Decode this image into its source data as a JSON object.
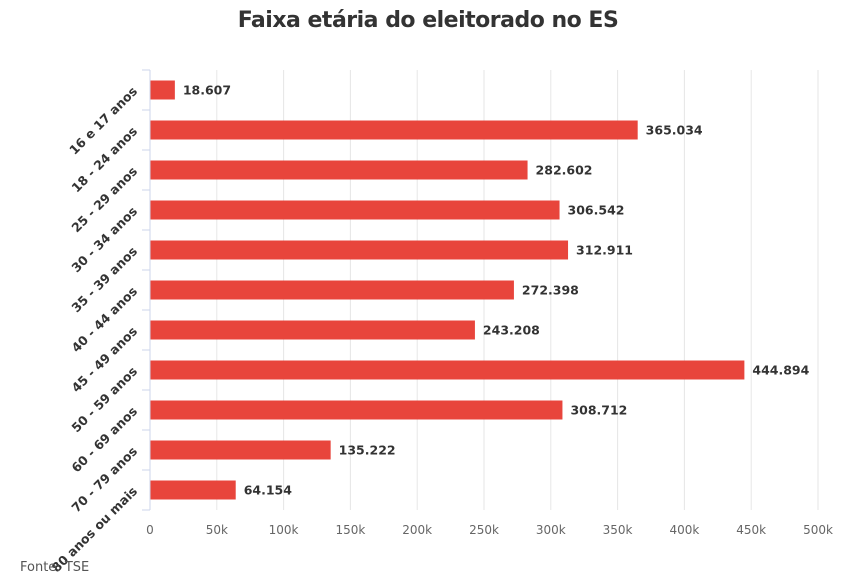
{
  "chart_data": {
    "type": "bar",
    "orientation": "horizontal",
    "title": "Faixa etária do eleitorado no ES",
    "categories": [
      "16 e 17 anos",
      "18 - 24 anos",
      "25 - 29 anos",
      "30 - 34 anos",
      "35 - 39 anos",
      "40 - 44 anos",
      "45 - 49 anos",
      "50 - 59 anos",
      "60 - 69 anos",
      "70 - 79 anos",
      "80 anos ou mais"
    ],
    "values": [
      18607,
      365034,
      282602,
      306542,
      312911,
      272398,
      243208,
      444894,
      308712,
      135222,
      64154
    ],
    "value_labels": [
      "18.607",
      "365.034",
      "282.602",
      "306.542",
      "312.911",
      "272.398",
      "243.208",
      "444.894",
      "308.712",
      "135.222",
      "64.154"
    ],
    "x_ticks": [
      0,
      50000,
      100000,
      150000,
      200000,
      250000,
      300000,
      350000,
      400000,
      450000,
      500000
    ],
    "x_tick_labels": [
      "0",
      "50k",
      "100k",
      "150k",
      "200k",
      "250k",
      "300k",
      "350k",
      "400k",
      "450k",
      "500k"
    ],
    "xlim": [
      0,
      500000
    ],
    "xlabel": "",
    "ylabel": "",
    "grid": true,
    "legend": "none",
    "bar_color": "#e8453c",
    "grid_color": "#e6e6e6"
  },
  "source": "Fonte: TSE"
}
